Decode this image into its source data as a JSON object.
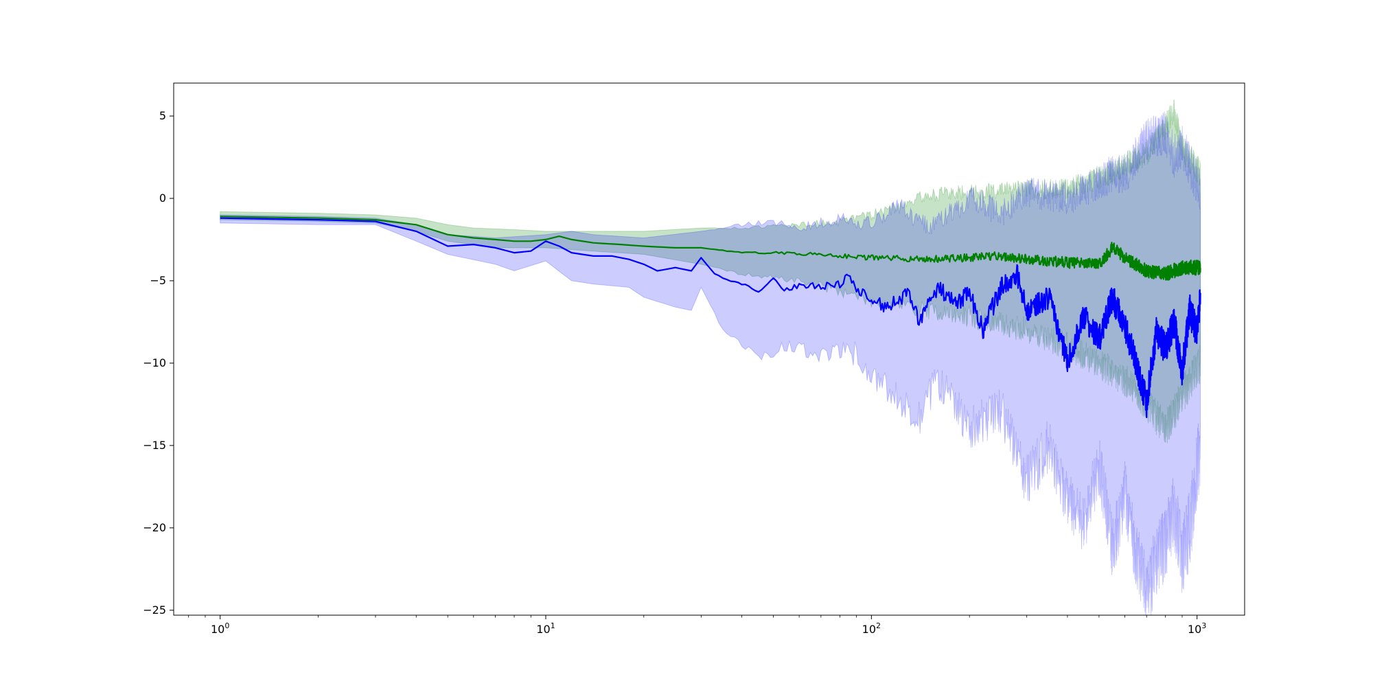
{
  "chart_data": {
    "type": "line",
    "title": "",
    "xlabel": "",
    "ylabel": "",
    "xscale": "log",
    "xlim": [
      0.72,
      1400
    ],
    "ylim": [
      -25.3,
      7
    ],
    "grid": false,
    "x_ticks": [
      {
        "value": 1,
        "base": "10",
        "exp": "0"
      },
      {
        "value": 10,
        "base": "10",
        "exp": "1"
      },
      {
        "value": 100,
        "base": "10",
        "exp": "2"
      },
      {
        "value": 1000,
        "base": "10",
        "exp": "3"
      }
    ],
    "y_ticks": [
      {
        "value": 5,
        "label": "5"
      },
      {
        "value": 0,
        "label": "0"
      },
      {
        "value": -5,
        "label": "−5"
      },
      {
        "value": -10,
        "label": "−10"
      },
      {
        "value": -15,
        "label": "−15"
      },
      {
        "value": -20,
        "label": "−20"
      },
      {
        "value": -25,
        "label": "−25"
      }
    ],
    "x_range": [
      1,
      1024
    ],
    "series": [
      {
        "color": "#008000",
        "band_color": "#008000",
        "band_opacity": 0.22,
        "mean": [
          [
            1,
            -1.1
          ],
          [
            2,
            -1.2
          ],
          [
            3,
            -1.3
          ],
          [
            4,
            -1.6
          ],
          [
            5,
            -2.2
          ],
          [
            6,
            -2.4
          ],
          [
            7,
            -2.5
          ],
          [
            8,
            -2.6
          ],
          [
            9,
            -2.6
          ],
          [
            10,
            -2.5
          ],
          [
            11,
            -2.3
          ],
          [
            12,
            -2.5
          ],
          [
            14,
            -2.7
          ],
          [
            17,
            -2.8
          ],
          [
            20,
            -2.9
          ],
          [
            25,
            -3.0
          ],
          [
            30,
            -3.0
          ],
          [
            40,
            -3.3
          ],
          [
            50,
            -3.3
          ],
          [
            70,
            -3.4
          ],
          [
            100,
            -3.6
          ],
          [
            150,
            -3.7
          ],
          [
            200,
            -3.6
          ],
          [
            250,
            -3.5
          ],
          [
            300,
            -3.7
          ],
          [
            400,
            -3.9
          ],
          [
            500,
            -4.0
          ],
          [
            550,
            -3.0
          ],
          [
            600,
            -3.6
          ],
          [
            700,
            -4.4
          ],
          [
            800,
            -4.6
          ],
          [
            900,
            -4.2
          ],
          [
            1024,
            -4.2
          ]
        ],
        "upper": [
          [
            1,
            -0.8
          ],
          [
            2,
            -0.9
          ],
          [
            3,
            -1.0
          ],
          [
            4,
            -1.2
          ],
          [
            5,
            -1.6
          ],
          [
            6,
            -1.8
          ],
          [
            8,
            -1.9
          ],
          [
            10,
            -2.0
          ],
          [
            14,
            -2.0
          ],
          [
            20,
            -2.0
          ],
          [
            30,
            -1.8
          ],
          [
            40,
            -1.8
          ],
          [
            60,
            -1.6
          ],
          [
            80,
            -1.4
          ],
          [
            100,
            -1.0
          ],
          [
            150,
            0.2
          ],
          [
            200,
            0.4
          ],
          [
            300,
            0.5
          ],
          [
            400,
            0.6
          ],
          [
            500,
            1.2
          ],
          [
            600,
            2.0
          ],
          [
            700,
            2.8
          ],
          [
            800,
            4.3
          ],
          [
            850,
            5.3
          ],
          [
            900,
            3.0
          ],
          [
            1024,
            1.5
          ]
        ],
        "lower": [
          [
            1,
            -1.3
          ],
          [
            2,
            -1.4
          ],
          [
            3,
            -1.5
          ],
          [
            4,
            -2.0
          ],
          [
            5,
            -2.6
          ],
          [
            7,
            -3.0
          ],
          [
            10,
            -3.0
          ],
          [
            14,
            -3.2
          ],
          [
            20,
            -3.4
          ],
          [
            30,
            -4.0
          ],
          [
            40,
            -4.6
          ],
          [
            60,
            -5.0
          ],
          [
            80,
            -5.6
          ],
          [
            100,
            -6.2
          ],
          [
            150,
            -6.8
          ],
          [
            200,
            -7.2
          ],
          [
            300,
            -8.0
          ],
          [
            400,
            -9.0
          ],
          [
            500,
            -10.0
          ],
          [
            600,
            -11.0
          ],
          [
            700,
            -12.5
          ],
          [
            800,
            -14.0
          ],
          [
            900,
            -12.0
          ],
          [
            1024,
            -10.0
          ]
        ]
      },
      {
        "color": "#0000ff",
        "band_color": "#0000ff",
        "band_opacity": 0.2,
        "mean": [
          [
            1,
            -1.2
          ],
          [
            2,
            -1.3
          ],
          [
            3,
            -1.4
          ],
          [
            4,
            -2.0
          ],
          [
            5,
            -2.9
          ],
          [
            6,
            -2.8
          ],
          [
            7,
            -3.0
          ],
          [
            8,
            -3.3
          ],
          [
            9,
            -3.2
          ],
          [
            10,
            -2.6
          ],
          [
            11,
            -2.9
          ],
          [
            12,
            -3.3
          ],
          [
            14,
            -3.5
          ],
          [
            16,
            -3.5
          ],
          [
            18,
            -3.7
          ],
          [
            20,
            -4.0
          ],
          [
            22,
            -4.4
          ],
          [
            25,
            -4.2
          ],
          [
            28,
            -4.4
          ],
          [
            30,
            -3.6
          ],
          [
            33,
            -4.6
          ],
          [
            37,
            -5.0
          ],
          [
            40,
            -5.2
          ],
          [
            45,
            -5.6
          ],
          [
            50,
            -4.8
          ],
          [
            55,
            -5.6
          ],
          [
            60,
            -5.2
          ],
          [
            70,
            -5.4
          ],
          [
            80,
            -5.2
          ],
          [
            85,
            -4.5
          ],
          [
            90,
            -5.6
          ],
          [
            100,
            -6.0
          ],
          [
            110,
            -6.6
          ],
          [
            120,
            -6.2
          ],
          [
            130,
            -5.8
          ],
          [
            140,
            -7.4
          ],
          [
            160,
            -5.4
          ],
          [
            180,
            -6.4
          ],
          [
            200,
            -5.8
          ],
          [
            220,
            -8.0
          ],
          [
            250,
            -5.4
          ],
          [
            280,
            -4.6
          ],
          [
            300,
            -6.8
          ],
          [
            350,
            -6.0
          ],
          [
            400,
            -9.8
          ],
          [
            450,
            -7.2
          ],
          [
            500,
            -8.6
          ],
          [
            550,
            -6.0
          ],
          [
            600,
            -7.8
          ],
          [
            650,
            -10.0
          ],
          [
            700,
            -12.4
          ],
          [
            750,
            -8.0
          ],
          [
            800,
            -9.2
          ],
          [
            850,
            -7.5
          ],
          [
            900,
            -10.4
          ],
          [
            950,
            -6.8
          ],
          [
            1000,
            -8.2
          ],
          [
            1024,
            -6.0
          ]
        ],
        "upper": [
          [
            1,
            -1.0
          ],
          [
            2,
            -1.1
          ],
          [
            3,
            -1.2
          ],
          [
            4,
            -1.6
          ],
          [
            5,
            -2.2
          ],
          [
            7,
            -2.4
          ],
          [
            10,
            -2.2
          ],
          [
            12,
            -2.0
          ],
          [
            14,
            -2.2
          ],
          [
            20,
            -2.4
          ],
          [
            30,
            -2.0
          ],
          [
            40,
            -1.6
          ],
          [
            50,
            -1.4
          ],
          [
            60,
            -1.8
          ],
          [
            80,
            -1.2
          ],
          [
            100,
            -1.6
          ],
          [
            120,
            -0.4
          ],
          [
            150,
            -1.8
          ],
          [
            180,
            -0.8
          ],
          [
            200,
            0.2
          ],
          [
            250,
            -1.0
          ],
          [
            300,
            0.4
          ],
          [
            400,
            0.0
          ],
          [
            500,
            1.0
          ],
          [
            550,
            1.5
          ],
          [
            600,
            1.4
          ],
          [
            700,
            3.6
          ],
          [
            800,
            4.0
          ],
          [
            850,
            2.5
          ],
          [
            900,
            3.2
          ],
          [
            1024,
            0.5
          ]
        ],
        "lower": [
          [
            1,
            -1.5
          ],
          [
            2,
            -1.6
          ],
          [
            3,
            -1.6
          ],
          [
            4,
            -2.6
          ],
          [
            5,
            -3.4
          ],
          [
            7,
            -4.0
          ],
          [
            8,
            -4.4
          ],
          [
            10,
            -3.8
          ],
          [
            12,
            -5.0
          ],
          [
            14,
            -5.2
          ],
          [
            18,
            -5.4
          ],
          [
            20,
            -6.0
          ],
          [
            25,
            -6.6
          ],
          [
            28,
            -6.8
          ],
          [
            30,
            -5.4
          ],
          [
            35,
            -8.0
          ],
          [
            45,
            -9.6
          ],
          [
            55,
            -9.0
          ],
          [
            70,
            -9.4
          ],
          [
            90,
            -9.4
          ],
          [
            100,
            -10.8
          ],
          [
            120,
            -12.0
          ],
          [
            140,
            -13.4
          ],
          [
            160,
            -11.0
          ],
          [
            200,
            -14.0
          ],
          [
            250,
            -12.8
          ],
          [
            300,
            -17.2
          ],
          [
            350,
            -15.0
          ],
          [
            400,
            -18.4
          ],
          [
            450,
            -20.0
          ],
          [
            500,
            -16.0
          ],
          [
            550,
            -21.4
          ],
          [
            600,
            -18.0
          ],
          [
            650,
            -21.6
          ],
          [
            700,
            -24.0
          ],
          [
            750,
            -22.0
          ],
          [
            800,
            -21.0
          ],
          [
            850,
            -19.0
          ],
          [
            900,
            -22.0
          ],
          [
            950,
            -20.0
          ],
          [
            1024,
            -15.0
          ]
        ]
      }
    ]
  }
}
